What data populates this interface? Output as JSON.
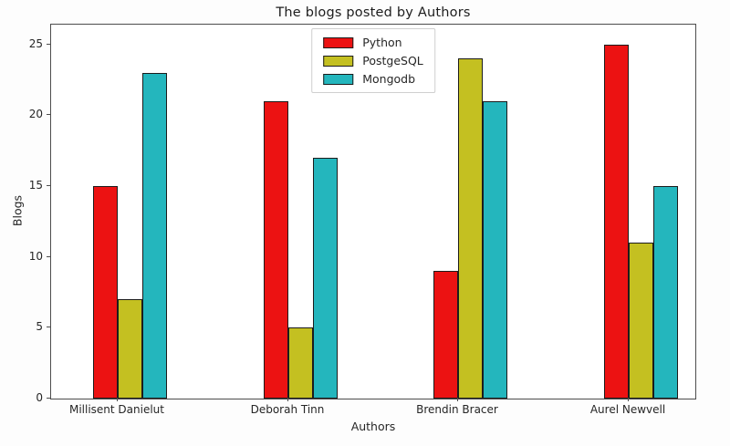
{
  "chart_data": {
    "type": "bar",
    "title": "The blogs posted by Authors",
    "xlabel": "Authors",
    "ylabel": "Blogs",
    "categories": [
      "Millisent Danielut",
      "Deborah Tinn",
      "Brendin Bracer",
      "Aurel Newvell"
    ],
    "series": [
      {
        "name": "Python",
        "color": "#ec1212",
        "values": [
          15,
          21,
          9,
          25
        ]
      },
      {
        "name": "PostgeSQL",
        "color": "#c4c021",
        "values": [
          7,
          5,
          24,
          11
        ]
      },
      {
        "name": "Mongodb",
        "color": "#24b6bd",
        "values": [
          23,
          17,
          21,
          15
        ]
      }
    ],
    "yticks": [
      0,
      5,
      10,
      15,
      20,
      25
    ],
    "ylim": [
      0,
      26.4
    ],
    "grid": false,
    "legend_position": "upper center",
    "bar_edge_color": "#1c1c1c",
    "axis_color": "#4d4d4d",
    "text_color": "#262626",
    "plot_background": "#ffffff"
  }
}
